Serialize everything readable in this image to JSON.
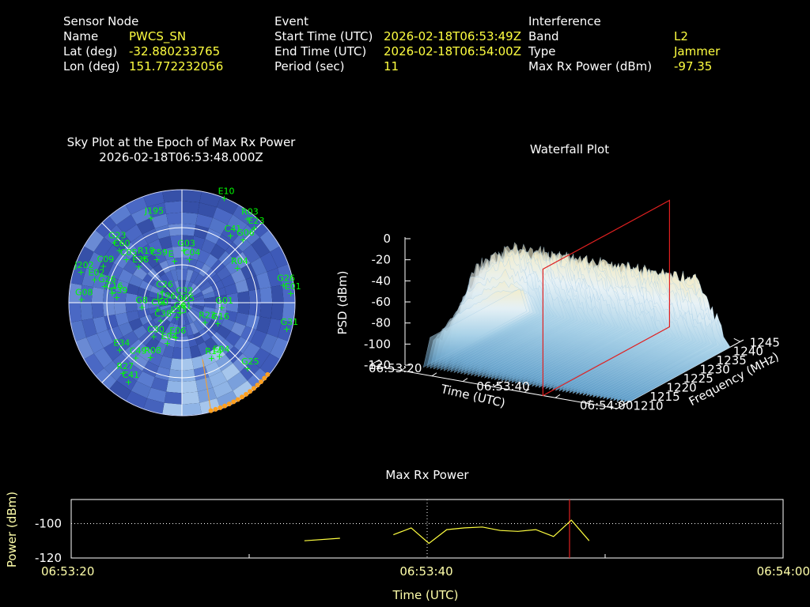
{
  "header": {
    "sensor": {
      "heading": "Sensor Node",
      "rows": [
        {
          "label": "Name",
          "value": "PWCS_SN"
        },
        {
          "label": "Lat (deg)",
          "value": "-32.880233765"
        },
        {
          "label": "Lon (deg)",
          "value": "151.772232056"
        }
      ]
    },
    "event": {
      "heading": "Event",
      "rows": [
        {
          "label": "Start Time (UTC)",
          "value": "2026-02-18T06:53:49Z"
        },
        {
          "label": "End Time (UTC)",
          "value": "2026-02-18T06:54:00Z"
        },
        {
          "label": "Period (sec)",
          "value": "11"
        }
      ]
    },
    "interference": {
      "heading": "Interference",
      "rows": [
        {
          "label": "Band",
          "value": "L2"
        },
        {
          "label": "Type",
          "value": "Jammer"
        },
        {
          "label": "Max Rx Power (dBm)",
          "value": "-97.35"
        }
      ]
    }
  },
  "sky": {
    "title": "Sky Plot at the Epoch of Max Rx Power",
    "subtitle": "2026-02-18T06:53:48.000Z"
  },
  "waterfall": {
    "title": "Waterfall Plot"
  },
  "maxpower": {
    "title": "Max Rx Power"
  },
  "colors": {
    "value_text": "#ffff40",
    "satellite": "#00ff00",
    "track": "#ffa020",
    "marker": "#e02020",
    "line": "#ffff40"
  },
  "chart_data": [
    {
      "type": "scatter",
      "name": "sky-plot",
      "title": "Sky Plot at the Epoch of Max Rx Power",
      "subtitle": "2026-02-18T06:53:48.000Z",
      "coordinates": "polar (azimuth deg, elevation deg)",
      "rings_elevation": [
        0,
        30,
        60
      ],
      "satellites": [
        {
          "id": "E10",
          "az": 22,
          "el": 0
        },
        {
          "id": "J195",
          "az": 340,
          "el": 18
        },
        {
          "id": "R03",
          "az": 38,
          "el": 5
        },
        {
          "id": "E23",
          "az": 44,
          "el": 7
        },
        {
          "id": "C41",
          "az": 36,
          "el": 24
        },
        {
          "id": "G06",
          "az": 44,
          "el": 20
        },
        {
          "id": "G03",
          "az": 2,
          "el": 48
        },
        {
          "id": "E",
          "az": 350,
          "el": 56
        },
        {
          "id": "C60",
          "az": 310,
          "el": 25
        },
        {
          "id": "G23",
          "az": 312,
          "el": 18
        },
        {
          "id": "R19",
          "az": 320,
          "el": 43
        },
        {
          "id": "C59",
          "az": 330,
          "el": 50
        },
        {
          "id": "C04",
          "az": 10,
          "el": 55
        },
        {
          "id": "C09",
          "az": 295,
          "el": 21
        },
        {
          "id": "C05",
          "az": 308,
          "el": 34
        },
        {
          "id": "E36",
          "az": 310,
          "el": 45
        },
        {
          "id": "J202",
          "az": 287,
          "el": 6
        },
        {
          "id": "E02",
          "az": 285,
          "el": 18
        },
        {
          "id": "G26",
          "az": 282,
          "el": 27
        },
        {
          "id": "C16",
          "az": 278,
          "el": 34
        },
        {
          "id": "R04",
          "az": 58,
          "el": 38
        },
        {
          "id": "G08",
          "az": 272,
          "el": 10
        },
        {
          "id": "C39",
          "az": 275,
          "el": 38
        },
        {
          "id": "C26",
          "az": 300,
          "el": 72
        },
        {
          "id": "J196",
          "az": 270,
          "el": 75
        },
        {
          "id": "C32",
          "az": 5,
          "el": 86
        },
        {
          "id": "G26b",
          "az": 80,
          "el": 8
        },
        {
          "id": "E01",
          "az": 85,
          "el": 3
        },
        {
          "id": "G01",
          "az": 97,
          "el": 58
        },
        {
          "id": "G8",
          "az": 264,
          "el": 58
        },
        {
          "id": "C60b",
          "az": 255,
          "el": 70
        },
        {
          "id": "C38",
          "az": 230,
          "el": 68
        },
        {
          "id": "E33",
          "az": 200,
          "el": 78
        },
        {
          "id": "G05",
          "az": 150,
          "el": 88
        },
        {
          "id": "G01b",
          "az": 190,
          "el": 82
        },
        {
          "id": "R23",
          "az": 130,
          "el": 66
        },
        {
          "id": "G16",
          "az": 120,
          "el": 57
        },
        {
          "id": "G31",
          "az": 104,
          "el": 4
        },
        {
          "id": "C30",
          "az": 220,
          "el": 55
        },
        {
          "id": "E04",
          "az": 200,
          "el": 56
        },
        {
          "id": "E06",
          "az": 190,
          "el": 62
        },
        {
          "id": "E34",
          "az": 233,
          "el": 28
        },
        {
          "id": "C49",
          "az": 220,
          "el": 33
        },
        {
          "id": "R08",
          "az": 210,
          "el": 40
        },
        {
          "id": "R14",
          "az": 152,
          "el": 40
        },
        {
          "id": "E04b",
          "az": 145,
          "el": 38
        },
        {
          "id": "G25",
          "az": 135,
          "el": 16
        },
        {
          "id": "R27",
          "az": 220,
          "el": 17
        },
        {
          "id": "C41b",
          "az": 214,
          "el": 14
        }
      ],
      "jammer_track": {
        "az_start": 165,
        "el_start": 0,
        "az_end": 130,
        "el_end": 0
      }
    },
    {
      "type": "area",
      "name": "waterfall-plot",
      "title": "Waterfall Plot",
      "xlabel": "Time (UTC)",
      "ylabel": "Frequency (MHz)",
      "zlabel": "PSD (dBm)",
      "x_ticks": [
        "06:53:20",
        "06:53:40",
        "06:54:00"
      ],
      "y_ticks": [
        1210,
        1215,
        1220,
        1225,
        1230,
        1235,
        1240,
        1245
      ],
      "z_ticks": [
        0,
        -20,
        -40,
        -60,
        -80,
        -100,
        -120
      ],
      "zlim": [
        -120,
        0
      ],
      "peak_psd_dbm": -32,
      "active_time_range": [
        "06:53:27",
        "06:54:00"
      ],
      "active_freq_range_mhz": [
        1213,
        1240
      ]
    },
    {
      "type": "line",
      "name": "max-rx-power",
      "title": "Max Rx Power",
      "xlabel": "Time (UTC)",
      "ylabel": "Power (dBm)",
      "x_ticks": [
        "06:53:20",
        "06:53:40",
        "06:54:00"
      ],
      "y_ticks": [
        -100,
        -120
      ],
      "xlim": [
        0,
        40
      ],
      "ylim": [
        -120,
        -86
      ],
      "threshold_dbm": -100,
      "marker_seconds": 28,
      "segments": [
        {
          "x": [
            13.1,
            15.1
          ],
          "y": [
            -110,
            -108.5
          ]
        },
        {
          "x": [
            18.1,
            19.1,
            20.1,
            21.1,
            22.1,
            23.1,
            24.1,
            25.1,
            26.1,
            27.1,
            28.1,
            29.1
          ],
          "y": [
            -106.5,
            -102.5,
            -111.5,
            -103.5,
            -102.5,
            -102.0,
            -104.0,
            -104.5,
            -103.5,
            -107.5,
            -98.0,
            -110.0
          ]
        }
      ]
    }
  ]
}
